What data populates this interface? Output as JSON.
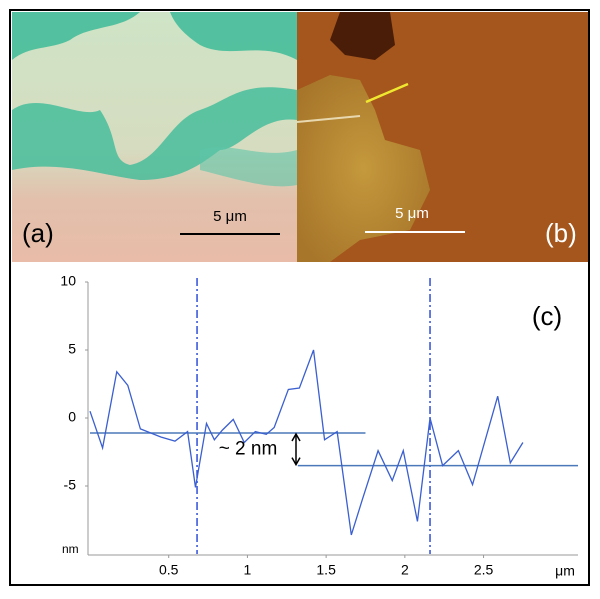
{
  "images": [
    {
      "label": "(a)",
      "scale_bar": "5 μm"
    },
    {
      "label": "(b)",
      "scale_bar": "5 μm"
    }
  ],
  "chart_data": {
    "type": "line",
    "label": "(c)",
    "x": [
      0,
      0.08,
      0.17,
      0.24,
      0.32,
      0.45,
      0.54,
      0.62,
      0.67,
      0.74,
      0.79,
      0.84,
      0.91,
      0.98,
      1.05,
      1.12,
      1.17,
      1.26,
      1.33,
      1.42,
      1.49,
      1.57,
      1.66,
      1.73,
      1.83,
      1.92,
      1.99,
      2.08,
      2.16,
      2.24,
      2.34,
      2.43,
      2.59,
      2.67,
      2.75
    ],
    "series": [
      {
        "color": "#3a5fd0",
        "values": [
          0.5,
          -2.2,
          3.4,
          2.4,
          -0.8,
          -1.4,
          -1.7,
          -1.0,
          -5.1,
          -0.4,
          -1.6,
          -0.9,
          -0.1,
          -1.8,
          -1.0,
          -1.2,
          -0.7,
          2.1,
          2.2,
          5.0,
          -1.6,
          -1.0,
          -8.6,
          -6.0,
          -2.4,
          -4.6,
          -2.4,
          -7.6,
          0,
          -3.5,
          -2.4,
          -4.9,
          1.6,
          -3.3,
          -1.8
        ]
      }
    ],
    "hlines": [
      {
        "y": -1.1,
        "xmin": 0,
        "xmax": 1.75,
        "color": "#4a78b8"
      },
      {
        "y": -3.5,
        "xmin": 1.32,
        "xmax": 3.1,
        "color": "#4a78b8"
      }
    ],
    "vlines": [
      0.68,
      2.16
    ],
    "annotation": "~ 2 nm",
    "xlabel": "μm",
    "ylabel": "nm",
    "xlim": [
      0,
      3.1
    ],
    "ylim": [
      -10,
      10
    ],
    "xticks": [
      0.5,
      1,
      1.5,
      2,
      2.5
    ],
    "yticks": [
      -5,
      0,
      5,
      10
    ]
  }
}
